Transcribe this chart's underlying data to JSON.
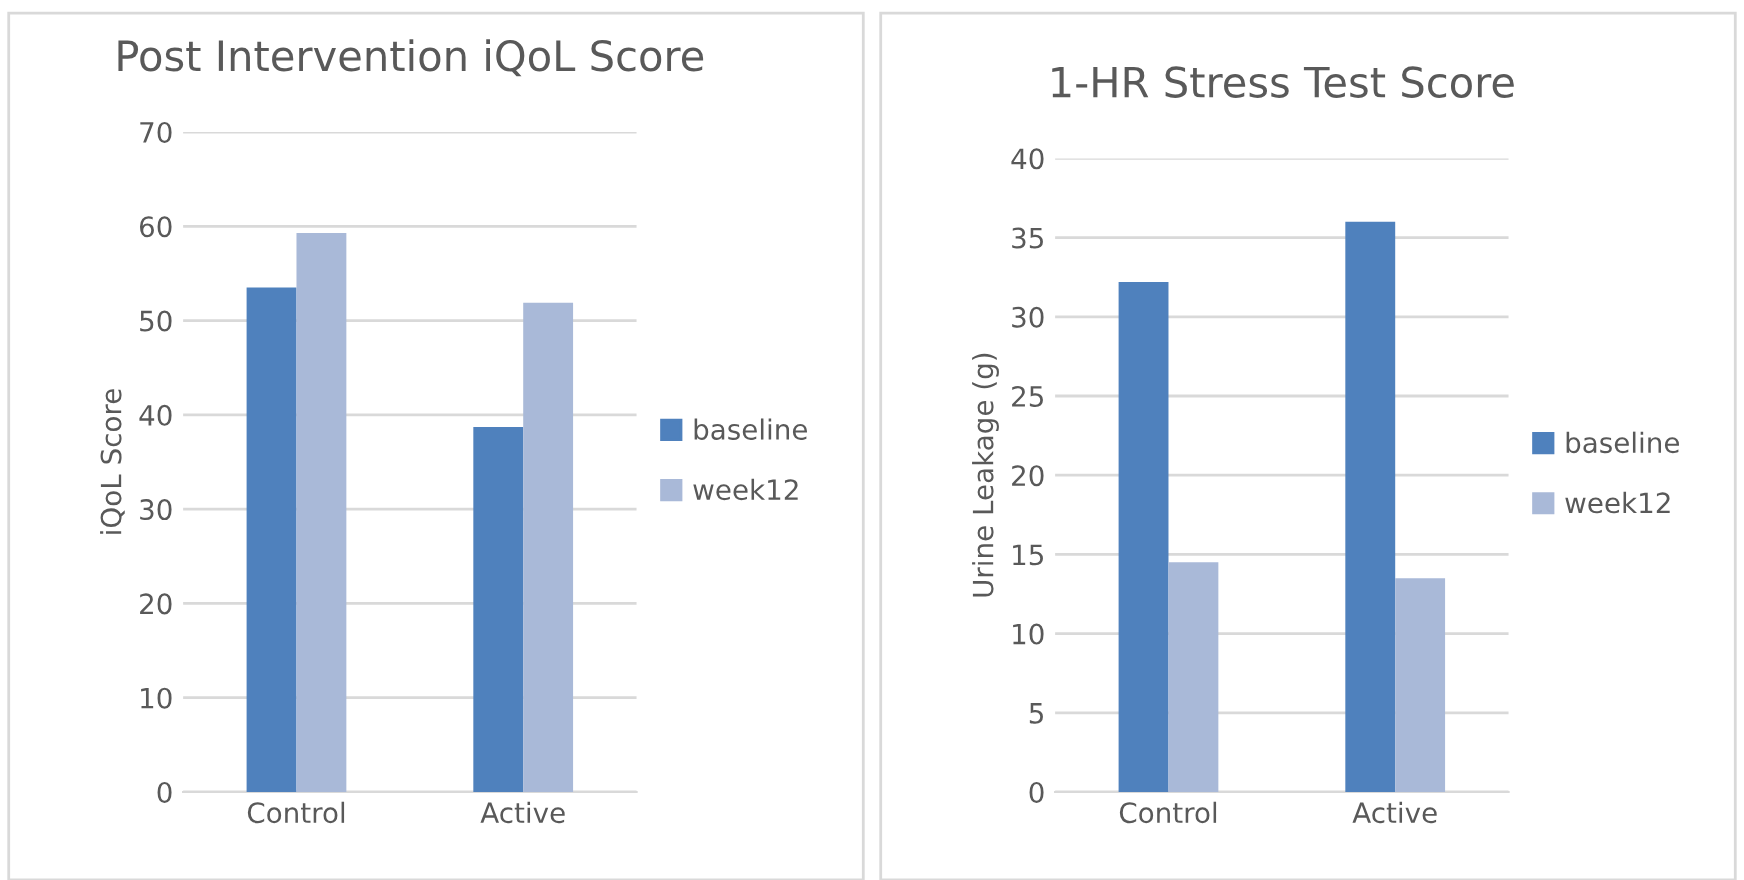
{
  "chart_data": [
    {
      "type": "bar",
      "title": "Post Intervention iQoL Score",
      "ylabel": "iQoL Score",
      "categories": [
        "Control",
        "Active"
      ],
      "series": [
        {
          "name": "baseline",
          "color": "#4f81bd",
          "values": [
            53.5,
            38.7
          ]
        },
        {
          "name": "week12",
          "color": "#a9b9d8",
          "values": [
            59.3,
            51.9
          ]
        }
      ],
      "ylim": [
        0,
        70
      ],
      "yticks": [
        0,
        10,
        20,
        30,
        40,
        50,
        60,
        70
      ],
      "grid": "y",
      "legend": "right"
    },
    {
      "type": "bar",
      "title": "1-HR Stress Test Score",
      "ylabel": "Urine Leakage (g)",
      "categories": [
        "Control",
        "Active"
      ],
      "series": [
        {
          "name": "baseline",
          "color": "#4f81bd",
          "values": [
            32.2,
            36.0
          ]
        },
        {
          "name": "week12",
          "color": "#a9b9d8",
          "values": [
            14.5,
            13.5
          ]
        }
      ],
      "ylim": [
        0,
        40
      ],
      "yticks": [
        0,
        5,
        10,
        15,
        20,
        25,
        30,
        35,
        40
      ],
      "grid": "y",
      "legend": "right"
    }
  ]
}
